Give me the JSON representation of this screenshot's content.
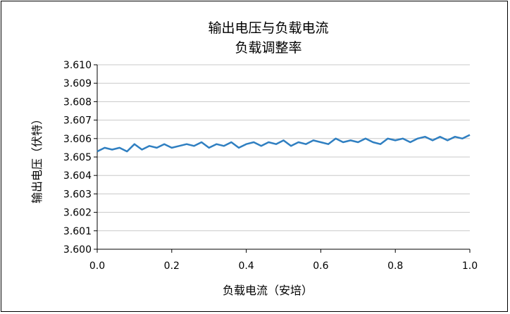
{
  "chart_data": {
    "type": "line",
    "title": "输出电压与负载电流",
    "subtitle": "负载调整率",
    "xlabel": "负载电流（安培）",
    "ylabel": "输出电压（伏特）",
    "xlim": [
      0.0,
      1.0
    ],
    "ylim": [
      3.6,
      3.61
    ],
    "xticks": [
      "0.0",
      "0.2",
      "0.4",
      "0.6",
      "0.8",
      "1.0"
    ],
    "yticks": [
      "3.600",
      "3.601",
      "3.602",
      "3.603",
      "3.604",
      "3.605",
      "3.606",
      "3.607",
      "3.608",
      "3.609",
      "3.610"
    ],
    "grid": "horizontal",
    "legend": "none",
    "series": [
      {
        "color": "#2f7fc1",
        "x": [
          0.0,
          0.02,
          0.04,
          0.06,
          0.08,
          0.1,
          0.12,
          0.14,
          0.16,
          0.18,
          0.2,
          0.22,
          0.24,
          0.26,
          0.28,
          0.3,
          0.32,
          0.34,
          0.36,
          0.38,
          0.4,
          0.42,
          0.44,
          0.46,
          0.48,
          0.5,
          0.52,
          0.54,
          0.56,
          0.58,
          0.6,
          0.62,
          0.64,
          0.66,
          0.68,
          0.7,
          0.72,
          0.74,
          0.76,
          0.78,
          0.8,
          0.82,
          0.84,
          0.86,
          0.88,
          0.9,
          0.92,
          0.94,
          0.96,
          0.98,
          1.0
        ],
        "y": [
          3.6053,
          3.6055,
          3.6054,
          3.6055,
          3.6053,
          3.6057,
          3.6054,
          3.6056,
          3.6055,
          3.6057,
          3.6055,
          3.6056,
          3.6057,
          3.6056,
          3.6058,
          3.6055,
          3.6057,
          3.6056,
          3.6058,
          3.6055,
          3.6057,
          3.6058,
          3.6056,
          3.6058,
          3.6057,
          3.6059,
          3.6056,
          3.6058,
          3.6057,
          3.6059,
          3.6058,
          3.6057,
          3.606,
          3.6058,
          3.6059,
          3.6058,
          3.606,
          3.6058,
          3.6057,
          3.606,
          3.6059,
          3.606,
          3.6058,
          3.606,
          3.6061,
          3.6059,
          3.6061,
          3.6059,
          3.6061,
          3.606,
          3.6062
        ]
      }
    ]
  }
}
